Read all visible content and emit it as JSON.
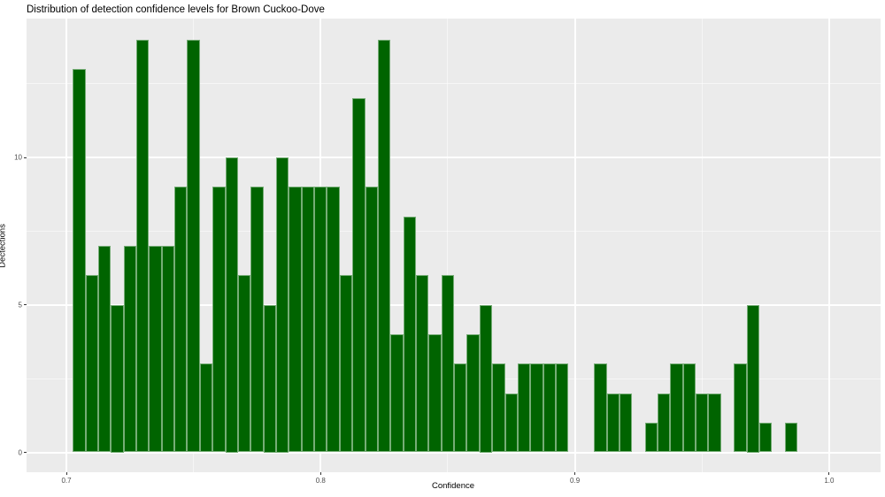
{
  "chart_data": {
    "type": "bar",
    "subtype": "histogram",
    "title": "Distribution of detection confidence levels for Brown Cuckoo-Dove",
    "xlabel": "Confidence",
    "ylabel": "Dectections",
    "legend": "none",
    "grid": "on",
    "panel_bg_color": "#ebebeb",
    "grid_color": "#ffffff",
    "bar_fill_color": "#006400",
    "bar_edge_color": "#76ad76",
    "tick_text_color": "#4d4d4d",
    "xlim": [
      0.684,
      1.021
    ],
    "ylim": [
      -0.7,
      14.7
    ],
    "x_ticks": [
      0.7,
      0.8,
      0.9,
      1.0
    ],
    "x_tick_labels": [
      "0.7",
      "0.8",
      "0.9",
      "1.0"
    ],
    "x_minor_ticks": [
      0.75,
      0.85,
      0.95
    ],
    "y_ticks": [
      0,
      5,
      10
    ],
    "y_tick_labels": [
      "0",
      "5",
      "10"
    ],
    "y_minor_ticks": [
      2.5,
      7.5,
      12.5
    ],
    "binwidth": 0.005,
    "bins": [
      {
        "center": 0.705,
        "count": 13
      },
      {
        "center": 0.71,
        "count": 6
      },
      {
        "center": 0.715,
        "count": 7
      },
      {
        "center": 0.72,
        "count": 5
      },
      {
        "center": 0.725,
        "count": 7
      },
      {
        "center": 0.73,
        "count": 14
      },
      {
        "center": 0.735,
        "count": 7
      },
      {
        "center": 0.74,
        "count": 7
      },
      {
        "center": 0.745,
        "count": 9
      },
      {
        "center": 0.75,
        "count": 14
      },
      {
        "center": 0.755,
        "count": 3
      },
      {
        "center": 0.76,
        "count": 9
      },
      {
        "center": 0.765,
        "count": 10
      },
      {
        "center": 0.77,
        "count": 6
      },
      {
        "center": 0.775,
        "count": 9
      },
      {
        "center": 0.78,
        "count": 5
      },
      {
        "center": 0.785,
        "count": 10
      },
      {
        "center": 0.79,
        "count": 9
      },
      {
        "center": 0.795,
        "count": 9
      },
      {
        "center": 0.8,
        "count": 9
      },
      {
        "center": 0.805,
        "count": 9
      },
      {
        "center": 0.81,
        "count": 6
      },
      {
        "center": 0.815,
        "count": 12
      },
      {
        "center": 0.82,
        "count": 9
      },
      {
        "center": 0.825,
        "count": 14
      },
      {
        "center": 0.83,
        "count": 4
      },
      {
        "center": 0.835,
        "count": 8
      },
      {
        "center": 0.84,
        "count": 6
      },
      {
        "center": 0.845,
        "count": 4
      },
      {
        "center": 0.85,
        "count": 6
      },
      {
        "center": 0.855,
        "count": 3
      },
      {
        "center": 0.86,
        "count": 4
      },
      {
        "center": 0.865,
        "count": 5
      },
      {
        "center": 0.87,
        "count": 3
      },
      {
        "center": 0.875,
        "count": 2
      },
      {
        "center": 0.88,
        "count": 3
      },
      {
        "center": 0.885,
        "count": 3
      },
      {
        "center": 0.89,
        "count": 3
      },
      {
        "center": 0.895,
        "count": 3
      },
      {
        "center": 0.91,
        "count": 3
      },
      {
        "center": 0.915,
        "count": 2
      },
      {
        "center": 0.92,
        "count": 2
      },
      {
        "center": 0.93,
        "count": 1
      },
      {
        "center": 0.935,
        "count": 2
      },
      {
        "center": 0.94,
        "count": 3
      },
      {
        "center": 0.945,
        "count": 3
      },
      {
        "center": 0.95,
        "count": 2
      },
      {
        "center": 0.955,
        "count": 2
      },
      {
        "center": 0.965,
        "count": 3
      },
      {
        "center": 0.97,
        "count": 5
      },
      {
        "center": 0.975,
        "count": 1
      },
      {
        "center": 0.985,
        "count": 1
      }
    ]
  }
}
